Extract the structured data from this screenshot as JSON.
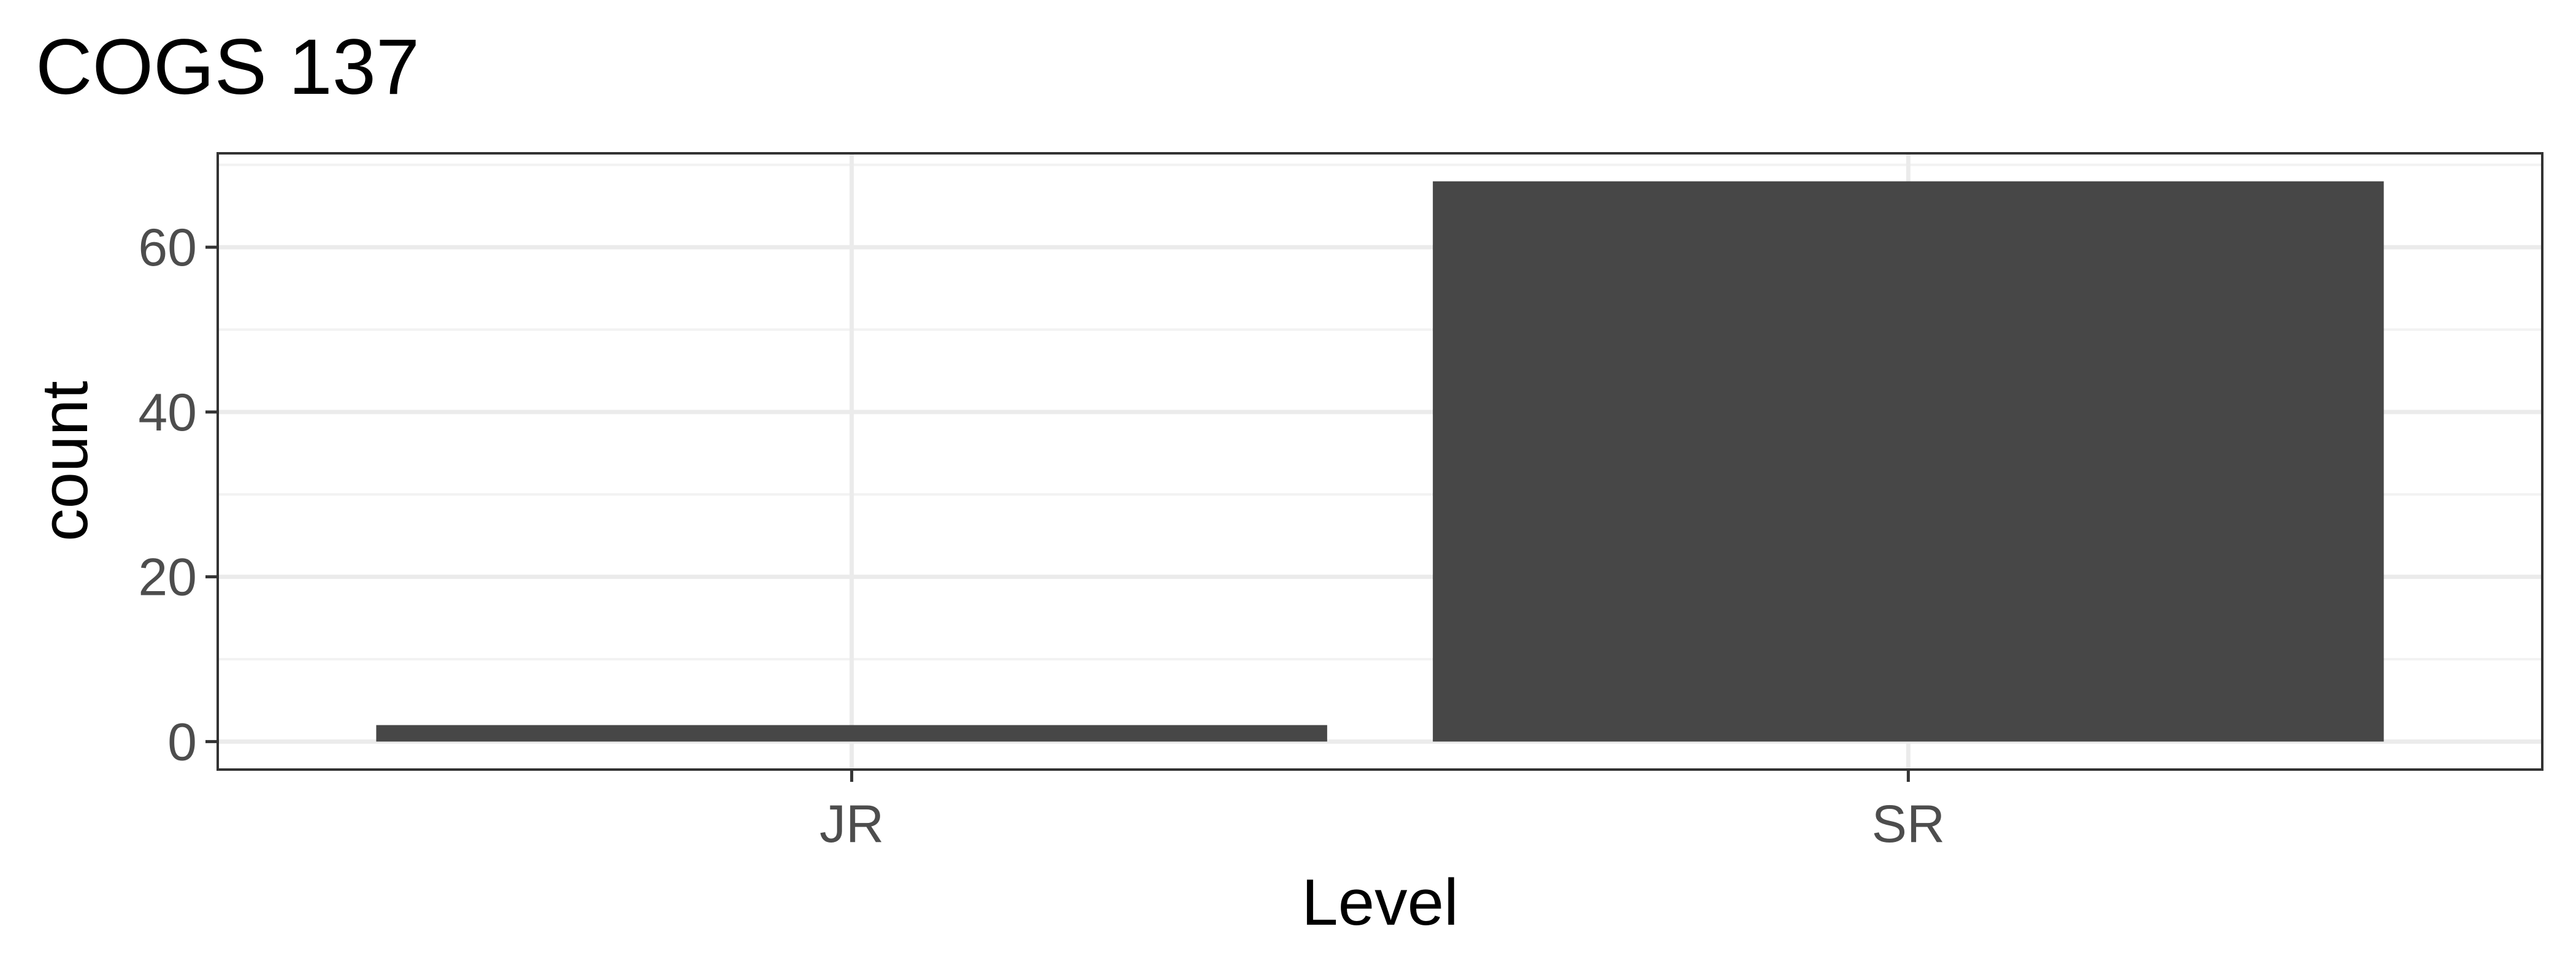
{
  "chart_data": {
    "type": "bar",
    "title": "COGS 137",
    "xlabel": "Level",
    "ylabel": "count",
    "categories": [
      "JR",
      "SR"
    ],
    "values": [
      2,
      68
    ],
    "ylim": [
      -3.4,
      71.4
    ],
    "yticks": [
      0,
      20,
      40,
      60
    ],
    "grid": true,
    "legend": "none",
    "colors": {
      "bar": "#474747",
      "grid_major": "#ebebeb",
      "grid_minor": "#f2f2f2",
      "panel_border": "#333333",
      "tick_text": "#4d4d4d",
      "title_text": "#000000"
    }
  }
}
